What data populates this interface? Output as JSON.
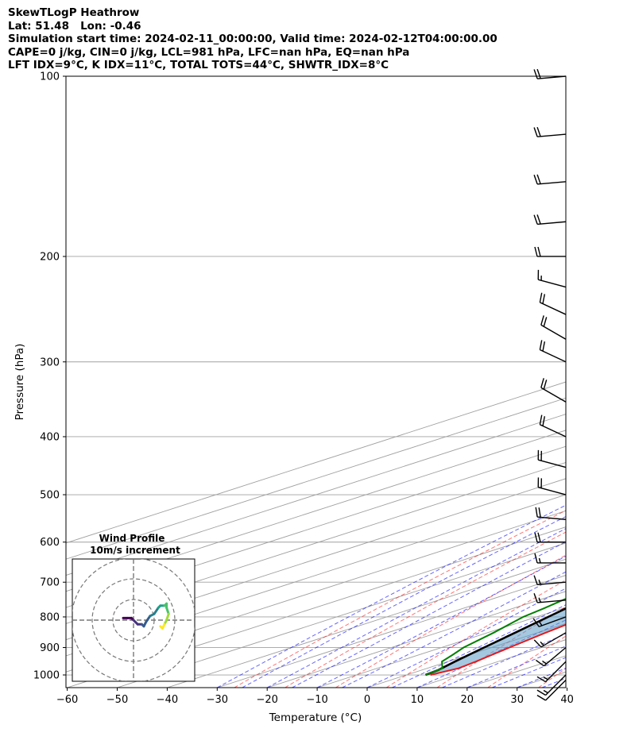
{
  "header": {
    "line1": "SkewTLogP Heathrow",
    "line2": "Lat: 51.48   Lon: -0.46",
    "line3": "Simulation start time: 2024-02-11_00:00:00, Valid time: 2024-02-12T04:00:00.00",
    "line4": "CAPE=0 j/kg, CIN=0 j/kg, LCL=981 hPa, LFC=nan hPa, EQ=nan hPa",
    "line5": "LFT IDX=9°C, K IDX=11°C, TOTAL TOTS=44°C, SHWTR_IDX=8°C"
  },
  "chart_data": {
    "type": "skewt",
    "xlabel": "Temperature (°C)",
    "ylabel": "Pressure (hPa)",
    "xlim": [
      -60,
      40
    ],
    "ylim": [
      1050,
      100
    ],
    "yscale": "log",
    "grid": true,
    "x_ticks": [
      "−60",
      "−50",
      "−40",
      "−30",
      "−20",
      "−10",
      "0",
      "10",
      "20",
      "30",
      "40"
    ],
    "x_tick_values": [
      -60,
      -50,
      -40,
      -30,
      -20,
      -10,
      0,
      10,
      20,
      30,
      40
    ],
    "y_ticks": [
      100,
      200,
      300,
      400,
      500,
      600,
      700,
      800,
      900,
      1000
    ],
    "colors": {
      "temperature": "#e41a1c",
      "dewpoint": "#008000",
      "parcel": "#000000",
      "cape_fill": "#5b9bc8",
      "dry_adiabat": "#ff0000",
      "moist_adiabat": "#0000ff",
      "mixing_ratio": "#0000cc",
      "isotherm": "#808080"
    },
    "temperature_profile": [
      [
        1000,
        4.8
      ],
      [
        975,
        6.3
      ],
      [
        950,
        5.6
      ],
      [
        925,
        4.6
      ],
      [
        900,
        3.6
      ],
      [
        850,
        1.6
      ],
      [
        800,
        -0.2
      ],
      [
        750,
        -2.2
      ],
      [
        700,
        -3.9
      ],
      [
        650,
        -4.8
      ],
      [
        600,
        -5.8
      ],
      [
        550,
        -7.3
      ],
      [
        500,
        -9.2
      ],
      [
        450,
        -11.6
      ],
      [
        400,
        -14.6
      ],
      [
        350,
        -18.1
      ],
      [
        300,
        -22.7
      ],
      [
        275,
        -25.6
      ],
      [
        250,
        -26.3
      ],
      [
        225,
        -25.6
      ],
      [
        200,
        -24.6
      ],
      [
        175,
        -24.9
      ],
      [
        150,
        -25.6
      ],
      [
        125,
        -26.3
      ],
      [
        100,
        -27.0
      ]
    ],
    "dewpoint_profile": [
      [
        1000,
        3.8
      ],
      [
        975,
        3.1
      ],
      [
        950,
        -1.2
      ],
      [
        925,
        -3.3
      ],
      [
        900,
        -5.6
      ],
      [
        850,
        -8.8
      ],
      [
        800,
        -12.7
      ],
      [
        775,
        -13.8
      ],
      [
        750,
        -15.2
      ],
      [
        700,
        -17.6
      ],
      [
        650,
        -20.2
      ],
      [
        600,
        -24.9
      ],
      [
        550,
        -31.8
      ],
      [
        500,
        -37.7
      ],
      [
        480,
        -40.3
      ],
      [
        450,
        -41.6
      ],
      [
        400,
        -45.0
      ],
      [
        350,
        -49.0
      ],
      [
        300,
        -54.8
      ],
      [
        250,
        -61.8
      ],
      [
        220,
        -67.1
      ],
      [
        190,
        -72.0
      ],
      [
        180,
        -72.5
      ],
      [
        160,
        -72.4
      ],
      [
        130,
        -72.8
      ],
      [
        100,
        -73.0
      ]
    ],
    "parcel_profile": [
      [
        1000,
        3.8
      ],
      [
        981,
        3.3
      ],
      [
        950,
        1.4
      ],
      [
        900,
        -1.5
      ],
      [
        850,
        -4.5
      ],
      [
        800,
        -7.7
      ],
      [
        750,
        -11.1
      ],
      [
        700,
        -14.8
      ],
      [
        650,
        -18.8
      ],
      [
        600,
        -23.2
      ],
      [
        550,
        -28.0
      ],
      [
        500,
        -33.2
      ],
      [
        450,
        -38.9
      ],
      [
        400,
        -45.2
      ],
      [
        350,
        -52.1
      ],
      [
        300,
        -60.0
      ],
      [
        250,
        -68.9
      ],
      [
        200,
        -79.4
      ],
      [
        150,
        -92.3
      ],
      [
        100,
        -109.2
      ]
    ],
    "wind_barbs": [
      {
        "p": 100,
        "spd": 20,
        "dir": 265
      },
      {
        "p": 125,
        "spd": 20,
        "dir": 265
      },
      {
        "p": 150,
        "spd": 20,
        "dir": 265
      },
      {
        "p": 175,
        "spd": 20,
        "dir": 265
      },
      {
        "p": 200,
        "spd": 20,
        "dir": 270
      },
      {
        "p": 225,
        "spd": 15,
        "dir": 285
      },
      {
        "p": 250,
        "spd": 20,
        "dir": 295
      },
      {
        "p": 275,
        "spd": 20,
        "dir": 300
      },
      {
        "p": 300,
        "spd": 20,
        "dir": 295
      },
      {
        "p": 350,
        "spd": 20,
        "dir": 300
      },
      {
        "p": 400,
        "spd": 20,
        "dir": 295
      },
      {
        "p": 450,
        "spd": 20,
        "dir": 285
      },
      {
        "p": 500,
        "spd": 20,
        "dir": 285
      },
      {
        "p": 550,
        "spd": 20,
        "dir": 275
      },
      {
        "p": 600,
        "spd": 20,
        "dir": 270
      },
      {
        "p": 650,
        "spd": 15,
        "dir": 270
      },
      {
        "p": 700,
        "spd": 15,
        "dir": 265
      },
      {
        "p": 750,
        "spd": 15,
        "dir": 265
      },
      {
        "p": 800,
        "spd": 15,
        "dir": 250
      },
      {
        "p": 850,
        "spd": 15,
        "dir": 240
      },
      {
        "p": 900,
        "spd": 15,
        "dir": 230
      },
      {
        "p": 950,
        "spd": 15,
        "dir": 225
      },
      {
        "p": 1000,
        "spd": 15,
        "dir": 225
      },
      {
        "p": 1020,
        "spd": 10,
        "dir": 225
      }
    ],
    "hodograph": {
      "title_line1": "Wind Profile",
      "title_line2": "10m/s increment",
      "ring_count": 3,
      "u": [
        -5,
        -3,
        -1,
        0,
        2,
        4,
        5,
        6,
        8,
        10,
        12,
        13,
        15,
        16,
        16,
        17,
        16,
        15,
        14,
        13
      ],
      "v": [
        1,
        1,
        1,
        0,
        -2,
        -2,
        -3,
        -1,
        2,
        3,
        6,
        7,
        7,
        8,
        6,
        3,
        0,
        -2,
        -4,
        -3
      ]
    }
  }
}
